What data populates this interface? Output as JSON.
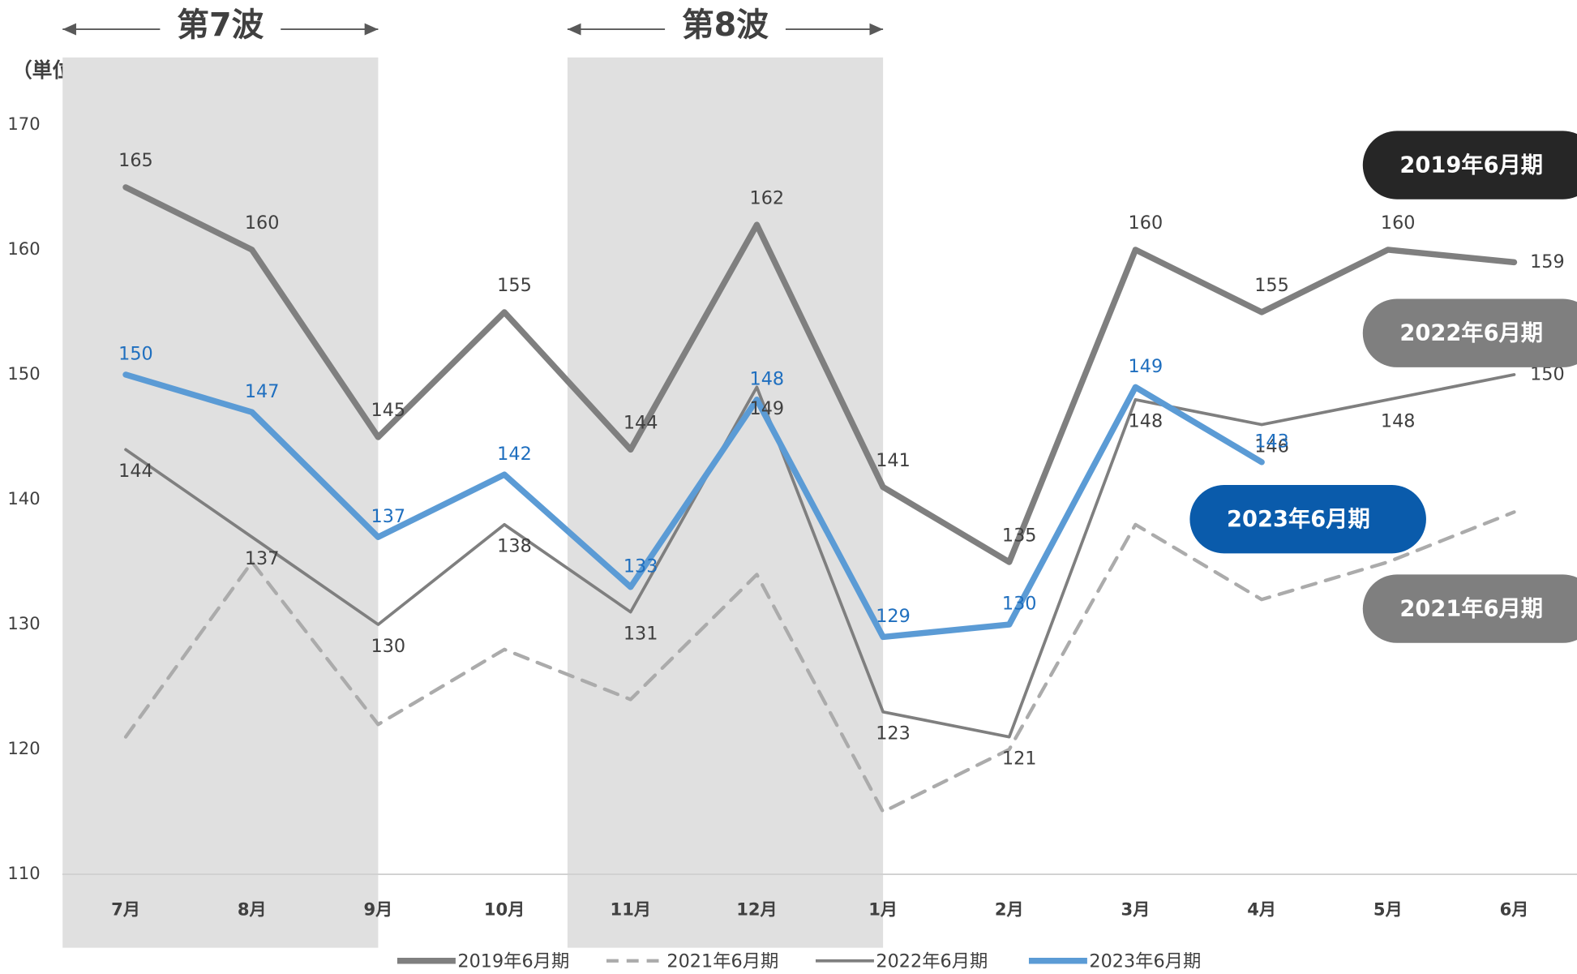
{
  "chart_data": {
    "type": "line",
    "y_label": "（単位：万人）",
    "categories": [
      "7月",
      "8月",
      "9月",
      "10月",
      "11月",
      "12月",
      "1月",
      "2月",
      "3月",
      "4月",
      "5月",
      "6月"
    ],
    "bands": [
      {
        "label": "第7波",
        "start": "7月",
        "end": "9月"
      },
      {
        "label": "第8波",
        "start": "11月",
        "end": "1月"
      }
    ],
    "series": [
      {
        "name": "2019年6月期",
        "color": "#7f7f7f",
        "width": 6,
        "dashed": false,
        "badge_color": "#262626",
        "label_color": "#404040",
        "values": [
          165,
          160,
          145,
          155,
          144,
          162,
          141,
          135,
          160,
          155,
          160,
          159
        ]
      },
      {
        "name": "2021年6月期",
        "color": "#ababab",
        "width": 3.5,
        "dashed": true,
        "badge_color": "#7f7f7f",
        "values": [
          121,
          135,
          122,
          128,
          124,
          134,
          115,
          120,
          138,
          132,
          135,
          139
        ]
      },
      {
        "name": "2022年6月期",
        "color": "#7f7f7f",
        "width": 3,
        "dashed": false,
        "badge_color": "#7f7f7f",
        "label_color": "#404040",
        "values": [
          144,
          137,
          130,
          138,
          131,
          149,
          123,
          121,
          148,
          146,
          148,
          150
        ]
      },
      {
        "name": "2023年6月期",
        "color": "#5b9bd5",
        "width": 6,
        "dashed": false,
        "badge_color": "#0a5bab",
        "label_color": "#1f6fbf",
        "values": [
          150,
          147,
          137,
          142,
          133,
          148,
          129,
          130,
          149,
          143,
          null,
          null
        ]
      }
    ],
    "ylim": [
      110,
      170
    ],
    "yticks": [
      110,
      120,
      130,
      140,
      150,
      160,
      170
    ],
    "grid": false
  }
}
